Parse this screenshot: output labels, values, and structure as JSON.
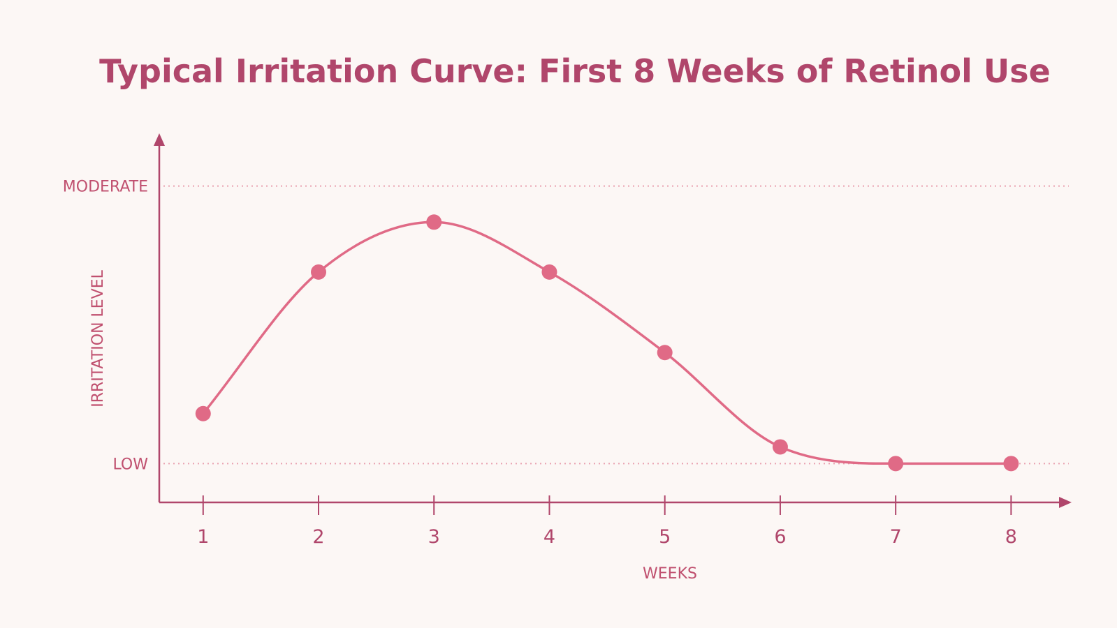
{
  "colors": {
    "background": "#fcf7f5",
    "title": "#b0466b",
    "axis": "#b0466b",
    "label": "#c0506f",
    "line": "#e06a86",
    "marker": "#e06a86",
    "reference": "#e9a1b0"
  },
  "chart_data": {
    "type": "line",
    "title": "Typical Irritation Curve: First 8 Weeks of Retinol Use",
    "xlabel": "WEEKS",
    "ylabel": "IRRITATION LEVEL",
    "x": [
      1,
      2,
      3,
      4,
      5,
      6,
      7,
      8
    ],
    "series": [
      {
        "values": [
          0.18,
          0.69,
          0.87,
          0.69,
          0.4,
          0.06,
          0.0,
          0.0
        ],
        "smooth": true,
        "markers": true
      }
    ],
    "y_reference_lines": [
      {
        "label": "MODERATE",
        "value": 1.0,
        "style": "dotted"
      },
      {
        "label": "LOW",
        "value": 0.0,
        "style": "dotted"
      }
    ],
    "ylim": [
      -0.14,
      1.18
    ],
    "xlim": [
      0.62,
      8.5
    ],
    "x_ticks": [
      "1",
      "2",
      "3",
      "4",
      "5",
      "6",
      "7",
      "8"
    ],
    "grid": false,
    "legend": "none"
  }
}
